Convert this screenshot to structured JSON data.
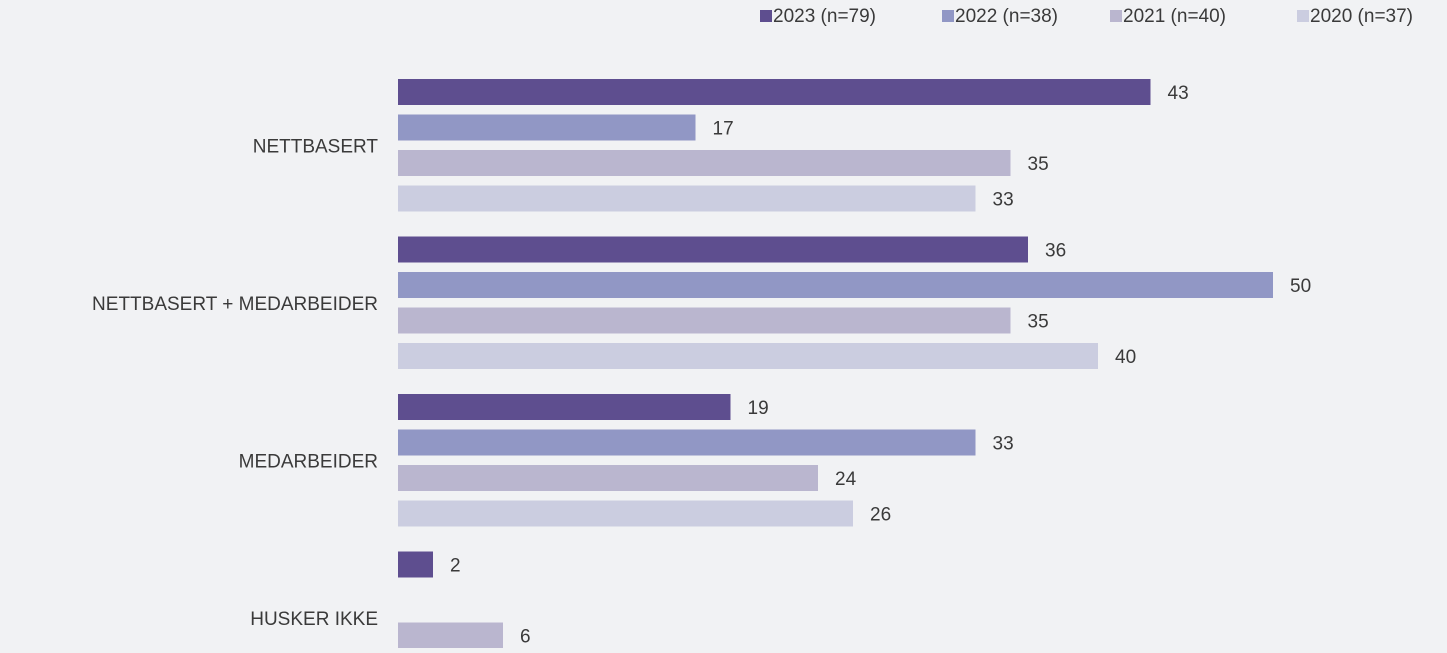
{
  "chart_data": {
    "type": "bar",
    "orientation": "horizontal",
    "categories": [
      "NETTBASERT",
      "NETTBASERT + MEDARBEIDER",
      "MEDARBEIDER",
      "HUSKER IKKE"
    ],
    "series": [
      {
        "name": "2023 (n=79)",
        "values": [
          43,
          36,
          19,
          2
        ],
        "color": "#5e4e8f"
      },
      {
        "name": "2022 (n=38)",
        "values": [
          17,
          50,
          33,
          null
        ],
        "color": "#9197c5"
      },
      {
        "name": "2021 (n=40)",
        "values": [
          35,
          35,
          24,
          6
        ],
        "color": "#bab6cf"
      },
      {
        "name": "2020 (n=37)",
        "values": [
          33,
          40,
          26,
          null
        ],
        "color": "#cbcde0"
      }
    ],
    "legend_position": "top-right",
    "grid": false,
    "data_labels": true,
    "xlim": [
      0,
      50
    ]
  }
}
